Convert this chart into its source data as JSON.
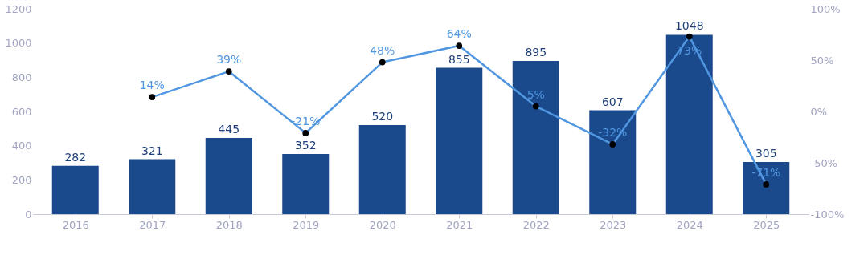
{
  "chart_data": {
    "type": "bar",
    "categories": [
      "2016",
      "2017",
      "2018",
      "2019",
      "2020",
      "2021",
      "2022",
      "2023",
      "2024",
      "2025"
    ],
    "ylim": [
      0,
      1200
    ],
    "yticks": [
      0,
      200,
      400,
      600,
      800,
      1000,
      1200
    ],
    "y2lim": [
      -100,
      100
    ],
    "y2ticks": [
      {
        "value": -100,
        "label": "-100%"
      },
      {
        "value": -50,
        "label": "-50%"
      },
      {
        "value": 0,
        "label": "0%"
      },
      {
        "value": 50,
        "label": "50%"
      },
      {
        "value": 100,
        "label": "100%"
      }
    ],
    "grid": false,
    "marker": "circle",
    "series": [
      {
        "color": "#1a4a8c",
        "values": [
          282,
          321,
          445,
          352,
          520,
          855,
          895,
          607,
          1048,
          305
        ],
        "value_labels": [
          "282",
          "321",
          "445",
          "352",
          "520",
          "855",
          "895",
          "607",
          "1048",
          "305"
        ]
      },
      {
        "type": "line",
        "axis": "y2",
        "color": "#5096e0",
        "values": [
          null,
          14,
          39,
          -21,
          48,
          64,
          5,
          -32,
          73,
          -71
        ],
        "value_labels": [
          null,
          "14%",
          "39%",
          "-21%",
          "48%",
          "64%",
          "5%",
          "-32%",
          "73%",
          "-71%"
        ]
      }
    ]
  }
}
